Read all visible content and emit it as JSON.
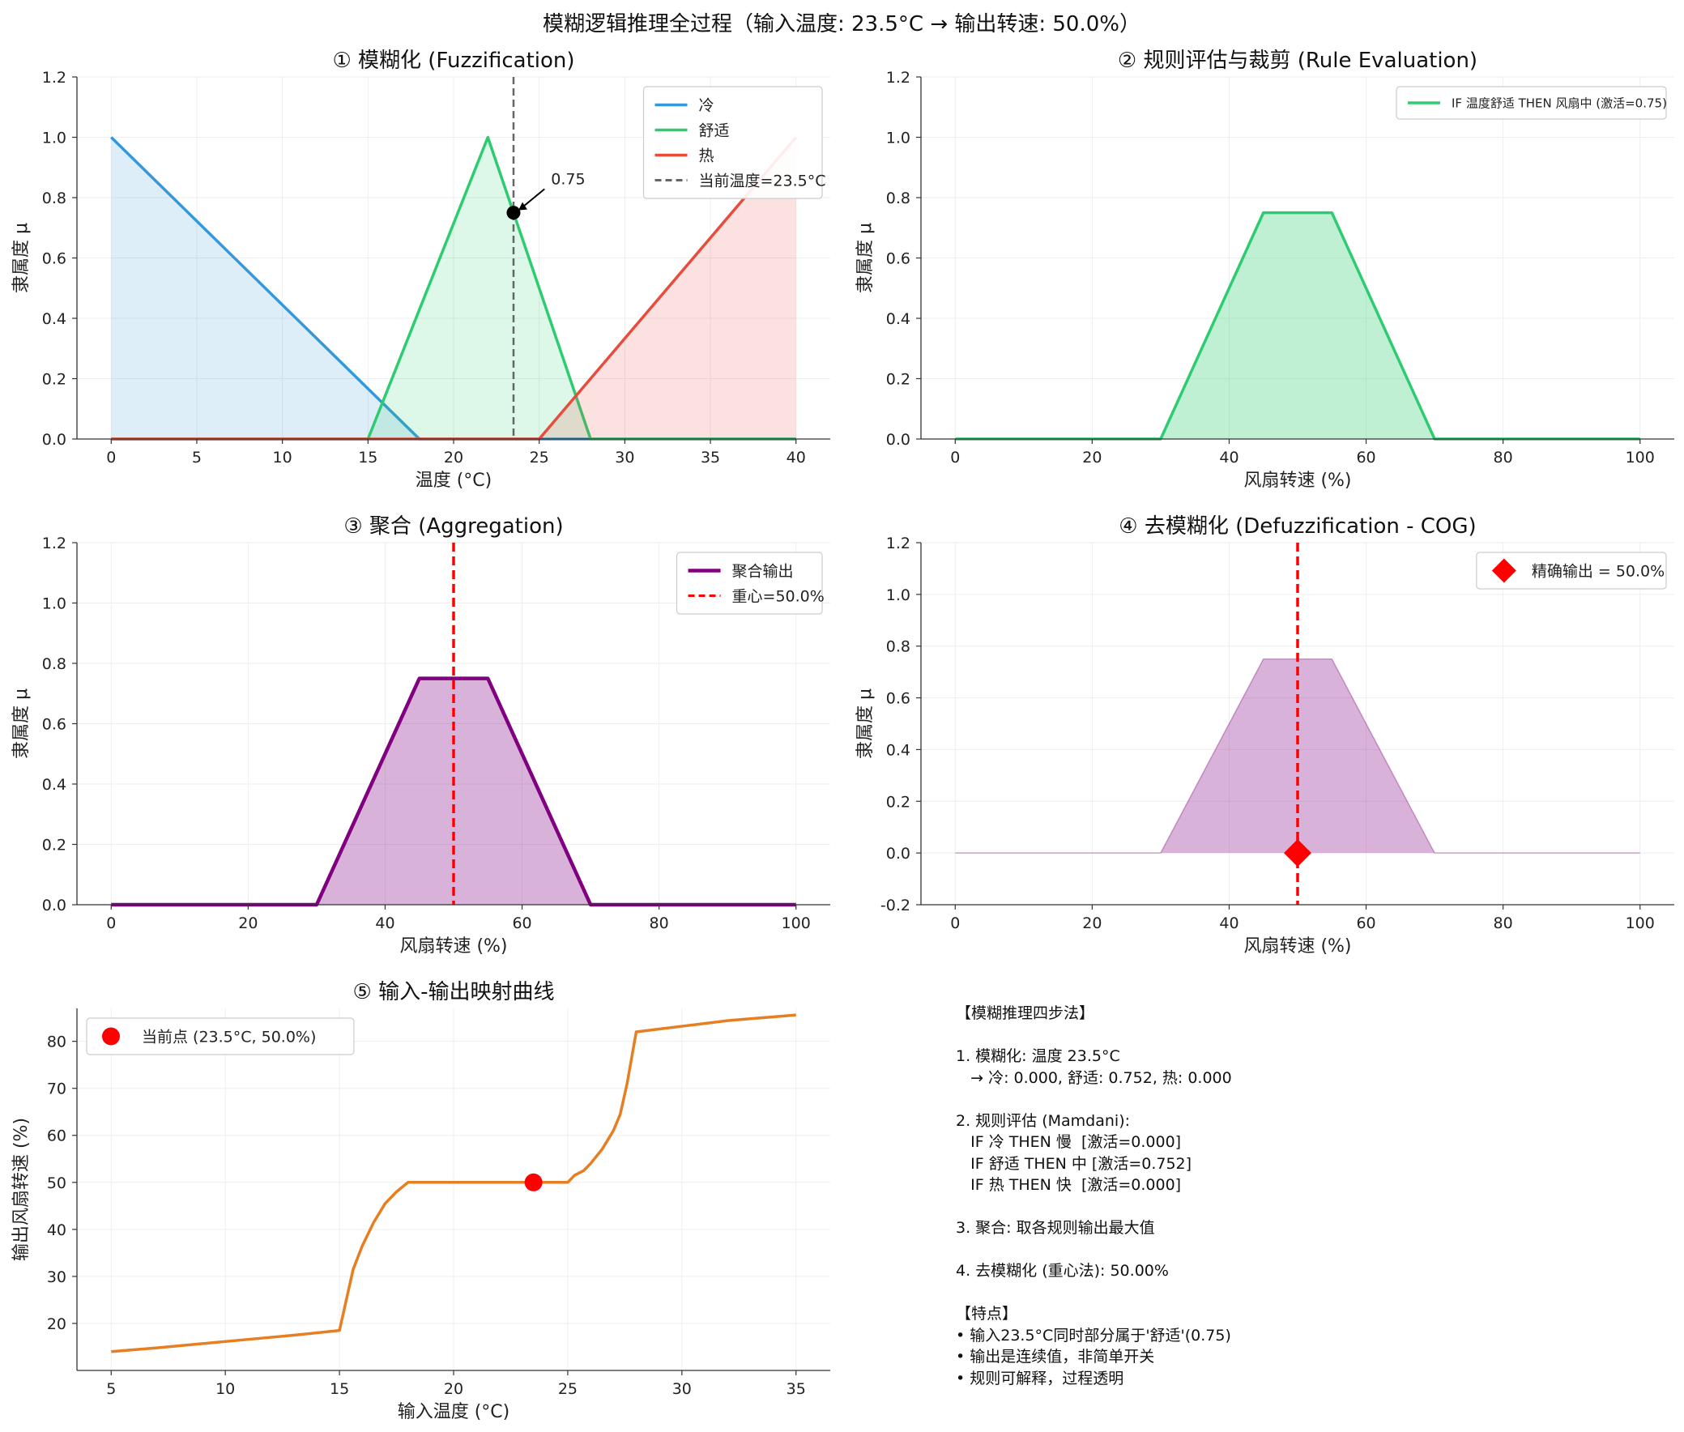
{
  "figure_title": "模糊逻辑推理全过程（输入温度: 23.5°C → 输出转速: 50.0%）",
  "colors": {
    "cold": "#3498db",
    "comfort": "#2ecc71",
    "hot": "#e74c3c",
    "aggregate": "#800080",
    "centroid": "#ff0000",
    "mapping": "#e67e22"
  },
  "chart_data": [
    {
      "type": "line",
      "title": "① 模糊化 (Fuzzification)",
      "xlabel": "温度 (°C)",
      "ylabel": "隶属度 μ",
      "xlim": [
        -2,
        42
      ],
      "ylim": [
        0,
        1.2
      ],
      "xticks": [
        0,
        5,
        10,
        15,
        20,
        25,
        30,
        35,
        40
      ],
      "yticks": [
        0.0,
        0.2,
        0.4,
        0.6,
        0.8,
        1.0,
        1.2
      ],
      "legend": "upper-right",
      "series": [
        {
          "name": "冷",
          "color": "#3498db",
          "x": [
            0,
            18,
            40
          ],
          "y": [
            1,
            0,
            0
          ],
          "fill": true
        },
        {
          "name": "舒适",
          "color": "#2ecc71",
          "x": [
            0,
            15,
            22,
            28,
            40
          ],
          "y": [
            0,
            0,
            1,
            0,
            0
          ],
          "fill": true
        },
        {
          "name": "热",
          "color": "#e74c3c",
          "x": [
            0,
            25,
            40
          ],
          "y": [
            0,
            0,
            1
          ],
          "fill": true
        }
      ],
      "vline": {
        "x": 23.5,
        "label": "当前温度=23.5°C"
      },
      "point": {
        "x": 23.5,
        "y": 0.75
      },
      "annotation": {
        "text": "0.75",
        "x": 25.5,
        "y": 0.85
      }
    },
    {
      "type": "area",
      "title": "② 规则评估与裁剪 (Rule Evaluation)",
      "xlabel": "风扇转速 (%)",
      "ylabel": "隶属度 μ",
      "xlim": [
        -5,
        105
      ],
      "ylim": [
        0,
        1.2
      ],
      "xticks": [
        0,
        20,
        40,
        60,
        80,
        100
      ],
      "yticks": [
        0.0,
        0.2,
        0.4,
        0.6,
        0.8,
        1.0,
        1.2
      ],
      "legend": "upper-right",
      "series": [
        {
          "name": "IF 温度舒适 THEN 风扇中 (激活=0.75)",
          "color": "#2ecc71",
          "x": [
            0,
            30,
            45,
            55,
            70,
            100
          ],
          "y": [
            0,
            0,
            0.75,
            0.75,
            0,
            0
          ],
          "fill": true
        }
      ]
    },
    {
      "type": "area",
      "title": "③ 聚合 (Aggregation)",
      "xlabel": "风扇转速 (%)",
      "ylabel": "隶属度 μ",
      "xlim": [
        -5,
        105
      ],
      "ylim": [
        0,
        1.2
      ],
      "xticks": [
        0,
        20,
        40,
        60,
        80,
        100
      ],
      "yticks": [
        0.0,
        0.2,
        0.4,
        0.6,
        0.8,
        1.0,
        1.2
      ],
      "legend": "upper-right",
      "series": [
        {
          "name": "聚合输出",
          "color": "#800080",
          "x": [
            0,
            30,
            45,
            55,
            70,
            100
          ],
          "y": [
            0,
            0,
            0.75,
            0.75,
            0,
            0
          ],
          "fill": true
        }
      ],
      "vline": {
        "x": 50,
        "label": "重心=50.0%"
      }
    },
    {
      "type": "area",
      "title": "④ 去模糊化 (Defuzzification - COG)",
      "xlabel": "风扇转速 (%)",
      "ylabel": "隶属度 μ",
      "xlim": [
        -5,
        105
      ],
      "ylim": [
        -0.2,
        1.2
      ],
      "xticks": [
        0,
        20,
        40,
        60,
        80,
        100
      ],
      "yticks": [
        -0.2,
        0.0,
        0.2,
        0.4,
        0.6,
        0.8,
        1.0,
        1.2
      ],
      "legend": "upper-right",
      "series": [
        {
          "color": "#800080",
          "x": [
            0,
            30,
            45,
            55,
            70,
            100
          ],
          "y": [
            0,
            0,
            0.75,
            0.75,
            0,
            0
          ],
          "fill": true
        }
      ],
      "vline": {
        "x": 50
      },
      "marker": {
        "name": "精确输出 = 50.0%",
        "x": 50,
        "y": 0
      }
    },
    {
      "type": "line",
      "title": "⑤ 输入-输出映射曲线",
      "xlabel": "输入温度 (°C)",
      "ylabel": "输出风扇转速 (%)",
      "xlim": [
        3.5,
        36.5
      ],
      "ylim": [
        10,
        87
      ],
      "xticks": [
        5,
        10,
        15,
        20,
        25,
        30,
        35
      ],
      "yticks": [
        20,
        30,
        40,
        50,
        60,
        70,
        80
      ],
      "legend": "upper-left",
      "series": [
        {
          "color": "#e67e22",
          "x": [
            5,
            7,
            9,
            11,
            13,
            15,
            15.3,
            15.6,
            16,
            16.5,
            17,
            17.5,
            18,
            19,
            20,
            21,
            22,
            23,
            24,
            25,
            25.3,
            25.7,
            26,
            26.5,
            27,
            27.3,
            27.6,
            28,
            29,
            30,
            31,
            32,
            33,
            34,
            35
          ],
          "y": [
            14,
            14.8,
            15.7,
            16.6,
            17.5,
            18.5,
            25,
            31.5,
            36.5,
            41.5,
            45.5,
            48,
            50,
            50,
            50,
            50,
            50,
            50,
            50,
            50,
            51.5,
            52.5,
            54,
            57,
            61,
            64.5,
            71,
            82,
            82.6,
            83.2,
            83.8,
            84.4,
            84.8,
            85.2,
            85.6
          ]
        }
      ],
      "point": {
        "name": "当前点 (23.5°C, 50.0%)",
        "x": 23.5,
        "y": 50
      }
    }
  ],
  "summary": [
    "【模糊推理四步法】",
    "",
    "1. 模糊化: 温度 23.5°C",
    "   → 冷: 0.000, 舒适: 0.752, 热: 0.000",
    "",
    "2. 规则评估 (Mamdani):",
    "   IF 冷 THEN 慢  [激活=0.000]",
    "   IF 舒适 THEN 中 [激活=0.752]",
    "   IF 热 THEN 快  [激活=0.000]",
    "",
    "3. 聚合: 取各规则输出最大值",
    "",
    "4. 去模糊化 (重心法): 50.00%",
    "",
    "【特点】",
    "• 输入23.5°C同时部分属于'舒适'(0.75)",
    "• 输出是连续值，非简单开关",
    "• 规则可解释，过程透明"
  ]
}
